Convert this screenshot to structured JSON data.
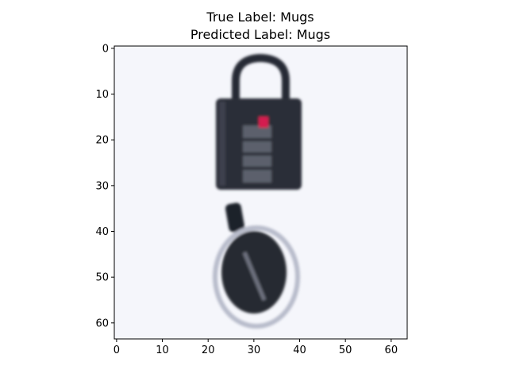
{
  "chart_data": {
    "type": "image",
    "title_lines": [
      "True Label: Mugs",
      "Predicted Label: Mugs"
    ],
    "true_label": "Mugs",
    "predicted_label": "Mugs",
    "image_shape": [
      64,
      64
    ],
    "xlim": [
      -0.5,
      63.5
    ],
    "ylim": [
      63.5,
      -0.5
    ],
    "x_ticks": [
      0,
      10,
      20,
      30,
      40,
      50,
      60
    ],
    "y_ticks": [
      0,
      10,
      20,
      30,
      40,
      50,
      60
    ],
    "xlabel": "",
    "ylabel": "",
    "grid": false,
    "image_subject": "dark padlock (top) and round dark tag / key fob (bottom) on a white background"
  }
}
